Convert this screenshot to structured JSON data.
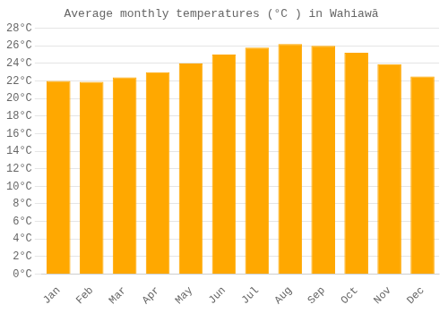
{
  "chart_data": {
    "type": "bar",
    "title": "Average monthly temperatures (°C ) in Wahiawā",
    "categories": [
      "Jan",
      "Feb",
      "Mar",
      "Apr",
      "May",
      "Jun",
      "Jul",
      "Aug",
      "Sep",
      "Oct",
      "Nov",
      "Dec"
    ],
    "values": [
      22.0,
      21.9,
      22.4,
      23.0,
      24.0,
      25.0,
      25.8,
      26.2,
      26.0,
      25.2,
      23.9,
      22.5
    ],
    "color": "#FFA800",
    "ylim": [
      0,
      28
    ],
    "yticks": [
      {
        "value": 0,
        "label": "0°C"
      },
      {
        "value": 2,
        "label": "2°C"
      },
      {
        "value": 4,
        "label": "4°C"
      },
      {
        "value": 6,
        "label": "6°C"
      },
      {
        "value": 8,
        "label": "8°C"
      },
      {
        "value": 10,
        "label": "10°C"
      },
      {
        "value": 12,
        "label": "12°C"
      },
      {
        "value": 14,
        "label": "14°C"
      },
      {
        "value": 16,
        "label": "16°C"
      },
      {
        "value": 18,
        "label": "18°C"
      },
      {
        "value": 20,
        "label": "20°C"
      },
      {
        "value": 22,
        "label": "22°C"
      },
      {
        "value": 24,
        "label": "24°C"
      },
      {
        "value": 26,
        "label": "26°C"
      },
      {
        "value": 28,
        "label": "28°C"
      }
    ],
    "grid": true
  }
}
